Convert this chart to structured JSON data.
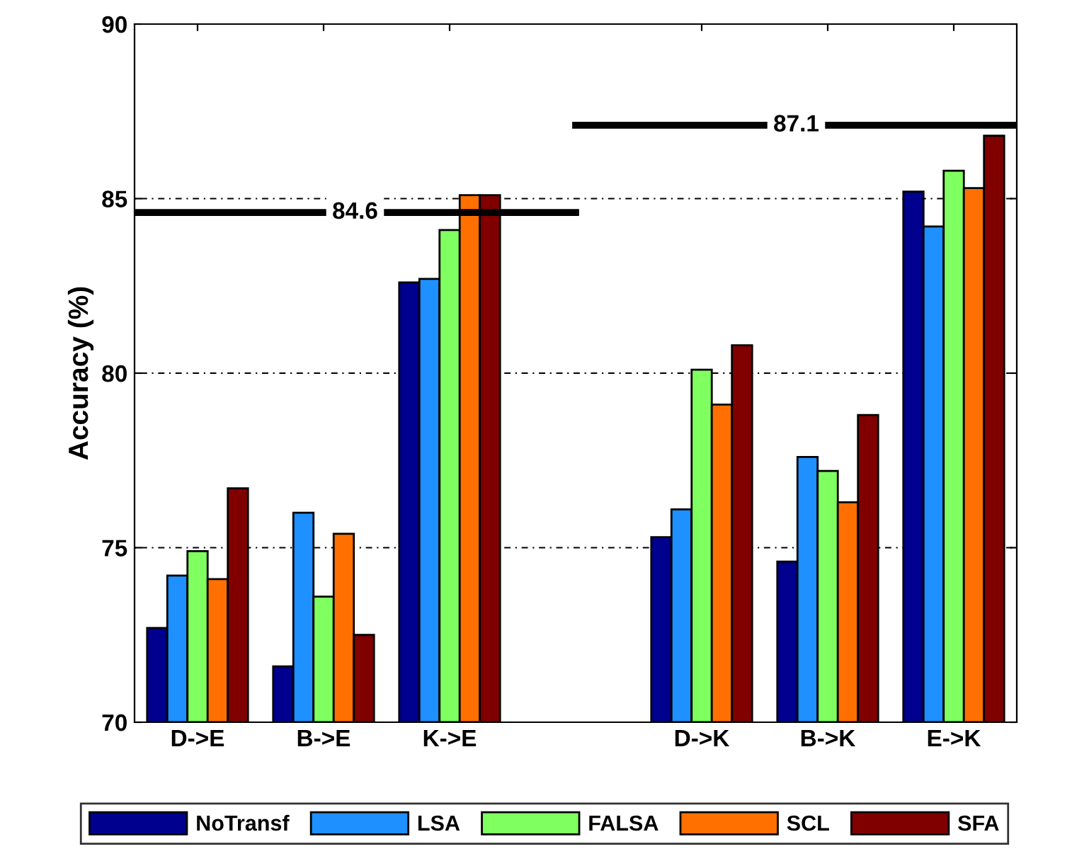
{
  "chart_data": {
    "type": "bar",
    "ylabel": "Accuracy (%)",
    "categories": [
      "D->E",
      "B->E",
      "K->E",
      null,
      "D->K",
      "B->K",
      "E->K"
    ],
    "series": [
      {
        "name": "NoTransf",
        "color": "#00008f",
        "values": [
          72.7,
          71.6,
          82.6,
          null,
          75.3,
          74.6,
          85.2
        ]
      },
      {
        "name": "LSA",
        "color": "#1e90ff",
        "values": [
          74.2,
          76.0,
          82.7,
          null,
          76.1,
          77.6,
          84.2
        ]
      },
      {
        "name": "FALSA",
        "color": "#80ff60",
        "values": [
          74.9,
          73.6,
          84.1,
          null,
          80.1,
          77.2,
          85.8
        ]
      },
      {
        "name": "SCL",
        "color": "#ff7000",
        "values": [
          74.1,
          75.4,
          85.1,
          null,
          79.1,
          76.3,
          85.3
        ]
      },
      {
        "name": "SFA",
        "color": "#800000",
        "values": [
          76.7,
          72.5,
          85.1,
          null,
          80.8,
          78.8,
          86.8
        ]
      }
    ],
    "ylim": [
      70,
      90
    ],
    "yticks": [
      70,
      75,
      80,
      85,
      90
    ],
    "grid": "y",
    "legend": "bottom",
    "ref_lines": [
      {
        "axis": "y",
        "value": 84.6,
        "label": "84.6",
        "color": "#000000"
      },
      {
        "axis": "y",
        "value": 87.1,
        "label": "87.1",
        "color": "#000000"
      }
    ]
  }
}
